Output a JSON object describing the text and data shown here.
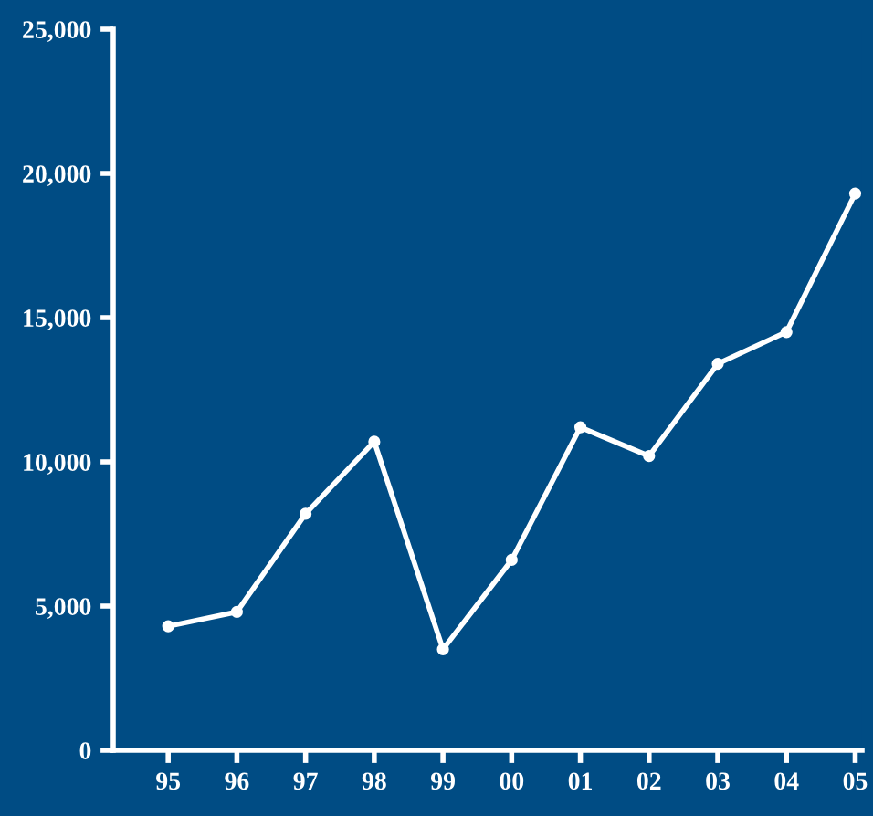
{
  "chart_data": {
    "type": "line",
    "categories": [
      "95",
      "96",
      "97",
      "98",
      "99",
      "00",
      "01",
      "02",
      "03",
      "04",
      "05"
    ],
    "series": [
      {
        "color": "#ffffff",
        "values": [
          4300,
          4800,
          8200,
          10700,
          3500,
          6600,
          11200,
          10200,
          13400,
          14500,
          19300
        ]
      }
    ],
    "ylim": [
      0,
      25000
    ],
    "yticks": [
      0,
      {
        "value": 5000,
        "label": "5,000"
      },
      {
        "value": 10000,
        "label": "10,000"
      },
      {
        "value": 15000,
        "label": "15,000"
      },
      {
        "value": 20000,
        "label": "20,000"
      },
      {
        "value": 25000,
        "label": "25,000"
      }
    ],
    "marker": "circle",
    "line_style": "solid"
  }
}
